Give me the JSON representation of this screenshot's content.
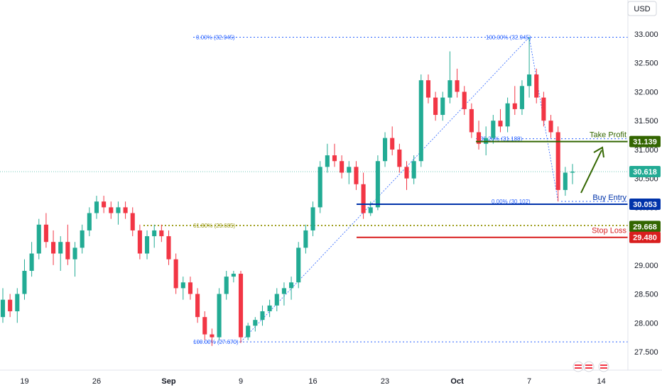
{
  "chart_data": {
    "type": "candlestick",
    "currency": "USD",
    "y_range": [
      27.4,
      33.3
    ],
    "y_ticks": [
      "27.500",
      "28.000",
      "28.500",
      "29.000",
      "29.500",
      "30.000",
      "30.500",
      "31.000",
      "31.500",
      "32.000",
      "32.500",
      "33.000"
    ],
    "x_ticks": [
      "19",
      "26",
      "Sep",
      "9",
      "16",
      "23",
      "Oct",
      "7",
      "14"
    ],
    "candles": [
      [
        28.1,
        28.6,
        28.0,
        28.4
      ],
      [
        28.4,
        28.5,
        28.1,
        28.2
      ],
      [
        28.2,
        28.6,
        28.0,
        28.5
      ],
      [
        28.5,
        29.1,
        28.4,
        28.9
      ],
      [
        28.9,
        29.4,
        28.8,
        29.2
      ],
      [
        29.2,
        29.8,
        29.1,
        29.7
      ],
      [
        29.7,
        29.9,
        29.3,
        29.4
      ],
      [
        29.4,
        29.6,
        29.0,
        29.2
      ],
      [
        29.2,
        29.5,
        28.9,
        29.4
      ],
      [
        29.4,
        29.7,
        29.0,
        29.1
      ],
      [
        29.1,
        29.4,
        28.8,
        29.3
      ],
      [
        29.3,
        29.7,
        29.2,
        29.6
      ],
      [
        29.6,
        30.0,
        29.5,
        29.9
      ],
      [
        29.9,
        30.2,
        29.8,
        30.1
      ],
      [
        30.1,
        30.2,
        29.9,
        30.0
      ],
      [
        30.0,
        30.1,
        29.8,
        29.9
      ],
      [
        29.9,
        30.1,
        29.7,
        30.0
      ],
      [
        30.0,
        30.1,
        29.8,
        29.9
      ],
      [
        29.9,
        30.0,
        29.5,
        29.6
      ],
      [
        29.6,
        29.7,
        29.1,
        29.2
      ],
      [
        29.2,
        29.6,
        29.1,
        29.5
      ],
      [
        29.5,
        29.7,
        29.3,
        29.6
      ],
      [
        29.6,
        29.7,
        29.4,
        29.5
      ],
      [
        29.5,
        29.6,
        29.0,
        29.1
      ],
      [
        29.1,
        29.2,
        28.5,
        28.6
      ],
      [
        28.6,
        28.8,
        28.4,
        28.7
      ],
      [
        28.7,
        28.8,
        28.4,
        28.5
      ],
      [
        28.5,
        28.6,
        28.0,
        28.1
      ],
      [
        28.1,
        28.2,
        27.7,
        27.8
      ],
      [
        27.8,
        27.9,
        27.6,
        27.75
      ],
      [
        27.75,
        28.6,
        27.7,
        28.5
      ],
      [
        28.5,
        28.9,
        28.4,
        28.8
      ],
      [
        28.8,
        28.9,
        28.7,
        28.85
      ],
      [
        28.85,
        28.9,
        27.65,
        27.75
      ],
      [
        27.75,
        28.0,
        27.7,
        27.95
      ],
      [
        27.95,
        28.1,
        27.85,
        28.05
      ],
      [
        28.05,
        28.3,
        27.95,
        28.2
      ],
      [
        28.2,
        28.4,
        28.1,
        28.3
      ],
      [
        28.3,
        28.6,
        28.2,
        28.5
      ],
      [
        28.5,
        28.7,
        28.3,
        28.6
      ],
      [
        28.6,
        28.8,
        28.4,
        28.7
      ],
      [
        28.7,
        29.4,
        28.6,
        29.3
      ],
      [
        29.3,
        29.7,
        29.2,
        29.6
      ],
      [
        29.6,
        30.1,
        29.5,
        30.0
      ],
      [
        30.0,
        30.8,
        29.9,
        30.7
      ],
      [
        30.7,
        31.1,
        30.6,
        30.9
      ],
      [
        30.9,
        31.1,
        30.7,
        30.8
      ],
      [
        30.8,
        30.9,
        30.5,
        30.6
      ],
      [
        30.6,
        30.8,
        30.4,
        30.7
      ],
      [
        30.7,
        30.8,
        30.3,
        30.4
      ],
      [
        30.4,
        30.6,
        29.8,
        29.9
      ],
      [
        29.9,
        30.1,
        29.85,
        30.0
      ],
      [
        30.0,
        30.9,
        29.95,
        30.8
      ],
      [
        30.8,
        31.3,
        30.7,
        31.2
      ],
      [
        31.2,
        31.4,
        30.9,
        31.0
      ],
      [
        31.0,
        31.1,
        30.6,
        30.7
      ],
      [
        30.7,
        30.8,
        30.3,
        30.5
      ],
      [
        30.5,
        30.9,
        30.4,
        30.8
      ],
      [
        30.8,
        32.3,
        30.7,
        32.2
      ],
      [
        32.2,
        32.3,
        31.8,
        31.9
      ],
      [
        31.9,
        32.0,
        31.5,
        31.6
      ],
      [
        31.6,
        32.0,
        31.5,
        31.9
      ],
      [
        31.9,
        32.7,
        31.8,
        32.2
      ],
      [
        32.2,
        32.4,
        31.9,
        32.0
      ],
      [
        32.0,
        32.1,
        31.6,
        31.7
      ],
      [
        31.7,
        31.8,
        31.2,
        31.3
      ],
      [
        31.3,
        31.5,
        31.0,
        31.1
      ],
      [
        31.1,
        31.4,
        30.9,
        31.2
      ],
      [
        31.2,
        31.6,
        31.1,
        31.5
      ],
      [
        31.5,
        31.7,
        31.3,
        31.4
      ],
      [
        31.4,
        31.9,
        31.3,
        31.8
      ],
      [
        31.8,
        32.1,
        31.6,
        31.7
      ],
      [
        31.7,
        32.2,
        31.6,
        32.1
      ],
      [
        32.1,
        32.95,
        31.9,
        32.3
      ],
      [
        32.3,
        32.4,
        31.8,
        31.9
      ],
      [
        31.9,
        32.0,
        31.4,
        31.5
      ],
      [
        31.5,
        31.6,
        31.2,
        31.3
      ],
      [
        31.3,
        31.4,
        30.1,
        30.3
      ],
      [
        30.3,
        30.7,
        30.2,
        30.6
      ],
      [
        30.6,
        30.75,
        30.4,
        30.618
      ]
    ],
    "fib_retracement": {
      "levels": [
        {
          "label": "0.00% (32.945)",
          "value": 32.945
        },
        {
          "label": "100.00% (27.670)",
          "value": 27.67
        },
        {
          "label": "61.80% (29.685)",
          "value": 29.685
        }
      ]
    },
    "fib_retracement_2": {
      "levels": [
        {
          "label": "100.00% (32.945)",
          "value": 32.945
        },
        {
          "label": "38.20% (31.188)",
          "value": 31.188
        },
        {
          "label": "0.00% (30.102)",
          "value": 30.102
        }
      ]
    },
    "trade_levels": [
      {
        "label": "Take Profit",
        "value": 31.139,
        "tag": "31.139",
        "color": "#336600"
      },
      {
        "label": "Buy Entry",
        "value": 30.053,
        "tag": "30.053",
        "color": "#0033aa"
      },
      {
        "label": "",
        "value": 29.668,
        "tag": "29.668",
        "color": "#336600"
      },
      {
        "label": "Stop Loss",
        "value": 29.48,
        "tag": "29.480",
        "color": "#d91e1e"
      }
    ],
    "current_price": {
      "value": 30.618,
      "tag": "30.618",
      "color": "#22ab94"
    },
    "colors": {
      "up": "#22ab94",
      "down": "#f23645",
      "fib": "#2962ff",
      "fib_gold": "#9e9e1e"
    }
  }
}
